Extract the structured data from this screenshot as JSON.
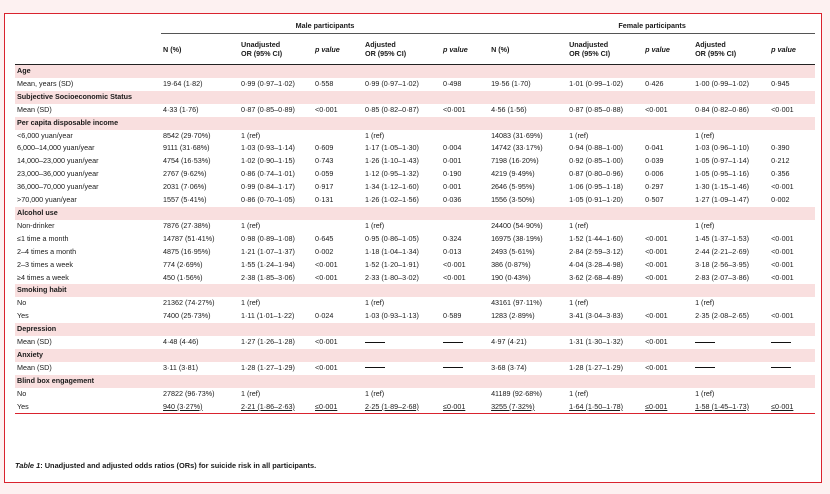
{
  "header": {
    "male_group": "Male participants",
    "female_group": "Female participants",
    "columns": [
      {
        "l1": "",
        "l2": "",
        "italic": false
      },
      {
        "l1": "N (%)",
        "l2": "",
        "italic": false
      },
      {
        "l1": "Unadjusted",
        "l2": "OR (95% CI)",
        "italic": false
      },
      {
        "l1": "p value",
        "l2": "",
        "italic": true
      },
      {
        "l1": "Adjusted",
        "l2": "OR (95% CI)",
        "italic": false
      },
      {
        "l1": "p value",
        "l2": "",
        "italic": true
      },
      {
        "l1": "N (%)",
        "l2": "",
        "italic": false
      },
      {
        "l1": "Unadjusted",
        "l2": "OR (95% CI)",
        "italic": false
      },
      {
        "l1": "p value",
        "l2": "",
        "italic": true
      },
      {
        "l1": "Adjusted",
        "l2": "OR (95% CI)",
        "italic": false
      },
      {
        "l1": "p value",
        "l2": "",
        "italic": true
      }
    ]
  },
  "rows": [
    {
      "type": "section",
      "label": "Age"
    },
    {
      "type": "data",
      "cells": [
        "Mean, years (SD)",
        "19·64 (1·82)",
        "0·99 (0·97–1·02)",
        "0·558",
        "0·99 (0·97–1·02)",
        "0·498",
        "19·56 (1·70)",
        "1·01 (0·99–1·02)",
        "0·426",
        "1·00 (0·99–1·02)",
        "0·945"
      ]
    },
    {
      "type": "section",
      "label": "Subjective Socioeconomic Status"
    },
    {
      "type": "data",
      "cells": [
        "Mean (SD)",
        "4·33 (1·76)",
        "0·87 (0·85–0·89)",
        "<0·001",
        "0·85 (0·82–0·87)",
        "<0·001",
        "4·56 (1·56)",
        "0·87 (0·85–0·88)",
        "<0·001",
        "0·84 (0·82–0·86)",
        "<0·001"
      ]
    },
    {
      "type": "section",
      "label": "Per capita disposable income"
    },
    {
      "type": "data",
      "cells": [
        "<6,000 yuan/year",
        "8542 (29·70%)",
        "1 (ref)",
        "",
        "1 (ref)",
        "",
        "14083 (31·69%)",
        "1 (ref)",
        "",
        "1 (ref)",
        ""
      ]
    },
    {
      "type": "data",
      "cells": [
        "6,000–14,000 yuan/year",
        "9111 (31·68%)",
        "1·03 (0·93–1·14)",
        "0·609",
        "1·17 (1·05–1·30)",
        "0·004",
        "14742 (33·17%)",
        "0·94 (0·88–1·00)",
        "0·041",
        "1·03 (0·96–1·10)",
        "0·390"
      ]
    },
    {
      "type": "data",
      "cells": [
        "14,000–23,000 yuan/year",
        "4754 (16·53%)",
        "1·02 (0·90–1·15)",
        "0·743",
        "1·26 (1·10–1·43)",
        "0·001",
        "7198 (16·20%)",
        "0·92 (0·85–1·00)",
        "0·039",
        "1·05 (0·97–1·14)",
        "0·212"
      ]
    },
    {
      "type": "data",
      "cells": [
        "23,000–36,000 yuan/year",
        "2767 (9·62%)",
        "0·86 (0·74–1·01)",
        "0·059",
        "1·12 (0·95–1·32)",
        "0·190",
        "4219 (9·49%)",
        "0·87 (0·80–0·96)",
        "0·006",
        "1·05 (0·95–1·16)",
        "0·356"
      ]
    },
    {
      "type": "data",
      "cells": [
        "36,000–70,000 yuan/year",
        "2031 (7·06%)",
        "0·99 (0·84–1·17)",
        "0·917",
        "1·34 (1·12–1·60)",
        "0·001",
        "2646 (5·95%)",
        "1·06 (0·95–1·18)",
        "0·297",
        "1·30 (1·15–1·46)",
        "<0·001"
      ]
    },
    {
      "type": "data",
      "cells": [
        ">70,000 yuan/year",
        "1557 (5·41%)",
        "0·86 (0·70–1·05)",
        "0·131",
        "1·26 (1·02–1·56)",
        "0·036",
        "1556 (3·50%)",
        "1·05 (0·91–1·20)",
        "0·507",
        "1·27 (1·09–1·47)",
        "0·002"
      ]
    },
    {
      "type": "section",
      "label": "Alcohol use"
    },
    {
      "type": "data",
      "cells": [
        "Non-drinker",
        "7876 (27·38%)",
        "1 (ref)",
        "",
        "1 (ref)",
        "",
        "24400 (54·90%)",
        "1 (ref)",
        "",
        "1 (ref)",
        ""
      ]
    },
    {
      "type": "data",
      "cells": [
        "≤1 time a month",
        "14787 (51·41%)",
        "0·98 (0·89–1·08)",
        "0·645",
        "0·95 (0·86–1·05)",
        "0·324",
        "16975 (38·19%)",
        "1·52 (1·44–1·60)",
        "<0·001",
        "1·45 (1·37–1·53)",
        "<0·001"
      ]
    },
    {
      "type": "data",
      "cells": [
        "2–4 times a month",
        "4875 (16·95%)",
        "1·21 (1·07–1·37)",
        "0·002",
        "1·18 (1·04–1·34)",
        "0·013",
        "2493 (5·61%)",
        "2·84 (2·59–3·12)",
        "<0·001",
        "2·44 (2·21–2·69)",
        "<0·001"
      ]
    },
    {
      "type": "data",
      "cells": [
        "2–3 times a week",
        "774 (2·69%)",
        "1·55 (1·24–1·94)",
        "<0·001",
        "1·52 (1·20–1·91)",
        "<0·001",
        "386 (0·87%)",
        "4·04 (3·28–4·98)",
        "<0·001",
        "3·18 (2·56–3·95)",
        "<0·001"
      ]
    },
    {
      "type": "data",
      "cells": [
        "≥4 times a week",
        "450 (1·56%)",
        "2·38 (1·85–3·06)",
        "<0·001",
        "2·33 (1·80–3·02)",
        "<0·001",
        "190 (0·43%)",
        "3·62 (2·68–4·89)",
        "<0·001",
        "2·83 (2·07–3·86)",
        "<0·001"
      ]
    },
    {
      "type": "section",
      "label": "Smoking habit"
    },
    {
      "type": "data",
      "cells": [
        "No",
        "21362 (74·27%)",
        "1 (ref)",
        "",
        "1 (ref)",
        "",
        "43161 (97·11%)",
        "1 (ref)",
        "",
        "1 (ref)",
        ""
      ]
    },
    {
      "type": "data",
      "cells": [
        "Yes",
        "7400 (25·73%)",
        "1·11 (1·01–1·22)",
        "0·024",
        "1·03 (0·93–1·13)",
        "0·589",
        "1283 (2·89%)",
        "3·41 (3·04–3·83)",
        "<0·001",
        "2·35 (2·08–2·65)",
        "<0·001"
      ]
    },
    {
      "type": "section",
      "label": "Depression"
    },
    {
      "type": "data",
      "cells": [
        "Mean (SD)",
        "4·48 (4·46)",
        "1·27 (1·26–1·28)",
        "<0·001",
        "—",
        "—",
        "4·97 (4·21)",
        "1·31 (1·30–1·32)",
        "<0·001",
        "—",
        "—"
      ]
    },
    {
      "type": "section",
      "label": "Anxiety"
    },
    {
      "type": "data",
      "cells": [
        "Mean (SD)",
        "3·11 (3·81)",
        "1·28 (1·27–1·29)",
        "<0·001",
        "—",
        "—",
        "3·68 (3·74)",
        "1·28 (1·27–1·29)",
        "<0·001",
        "—",
        "—"
      ]
    },
    {
      "type": "section",
      "label": "Blind box engagement"
    },
    {
      "type": "data",
      "cells": [
        "No",
        "27822 (96·73%)",
        "1 (ref)",
        "",
        "1 (ref)",
        "",
        "41189 (92·68%)",
        "1 (ref)",
        "",
        "1 (ref)",
        ""
      ]
    },
    {
      "type": "data",
      "underline": true,
      "cells": [
        "Yes",
        "940 (3·27%)",
        "2·21 (1·86–2·63)",
        "≤0·001",
        "2·25 (1·89–2·68)",
        "≤0·001",
        "3255 (7·32%)",
        "1·64 (1·50–1·78)",
        "≤0·001",
        "1·58 (1·45–1·73)",
        "≤0·001"
      ]
    }
  ],
  "caption": {
    "label": "Table 1",
    "text": ": Unadjusted and adjusted odds ratios (ORs) for suicide risk in all participants."
  }
}
